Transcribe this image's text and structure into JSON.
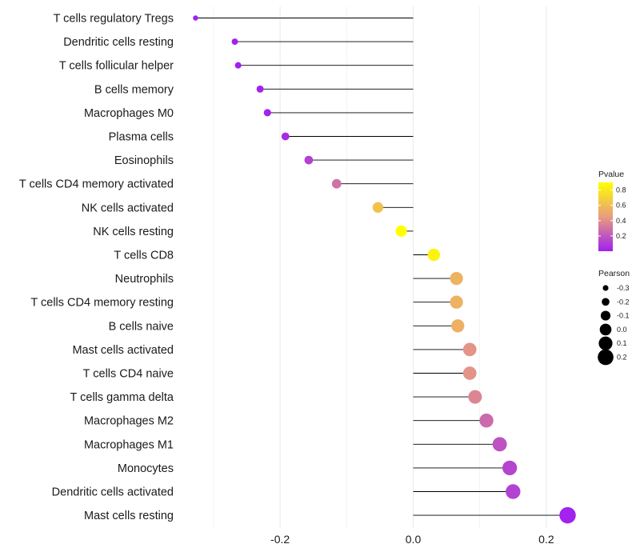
{
  "chart_data": {
    "type": "lollipop",
    "title": "",
    "xlabel": "",
    "ylabel": "",
    "xlim": [
      -0.33,
      0.23
    ],
    "grid": true,
    "x_ticks": [
      -0.2,
      0.0,
      0.2
    ],
    "x_tick_labels": [
      "-0.2",
      "0.0",
      "0.2"
    ],
    "categories": [
      "T cells regulatory  Tregs",
      "Dendritic cells resting",
      "T cells follicular helper",
      "B cells memory",
      "Macrophages M0",
      "Plasma cells",
      "Eosinophils",
      "T cells CD4 memory activated",
      "NK cells activated",
      "NK cells resting",
      "T cells CD8",
      "Neutrophils",
      "T cells CD4 memory resting",
      "B cells naive",
      "Mast cells activated",
      "T cells CD4 naive",
      "T cells gamma delta",
      "Macrophages M2",
      "Macrophages M1",
      "Monocytes",
      "Dendritic cells activated",
      "Mast cells resting"
    ],
    "series": [
      {
        "name": "Pearson",
        "values": [
          -0.327,
          -0.268,
          -0.263,
          -0.23,
          -0.219,
          -0.192,
          -0.157,
          -0.115,
          -0.053,
          -0.018,
          0.031,
          0.065,
          0.065,
          0.067,
          0.085,
          0.085,
          0.093,
          0.11,
          0.13,
          0.145,
          0.15,
          0.232
        ]
      },
      {
        "name": "Pvalue",
        "values": [
          0.001,
          0.002,
          0.003,
          0.01,
          0.015,
          0.04,
          0.12,
          0.3,
          0.62,
          0.92,
          0.85,
          0.55,
          0.55,
          0.54,
          0.42,
          0.42,
          0.37,
          0.27,
          0.18,
          0.13,
          0.12,
          0.01
        ]
      }
    ],
    "legend": {
      "placement": "right",
      "color": {
        "title": "Pvalue",
        "range": [
          0.0,
          0.9
        ],
        "ticks": [
          0.8,
          0.6,
          0.4,
          0.2
        ],
        "tick_labels": [
          "0.8",
          "0.6",
          "0.4",
          "0.2"
        ],
        "low_color": "#a020f0",
        "mid_color": "#e89c7e",
        "high_color": "#ffff00"
      },
      "size": {
        "title": "Pearson",
        "values": [
          -0.3,
          -0.2,
          -0.1,
          0.0,
          0.1,
          0.2
        ],
        "labels": [
          "-0.3",
          "-0.2",
          "-0.1",
          "0.0",
          "0.1",
          "0.2"
        ],
        "color": "#000000"
      }
    },
    "stem_color": "#000000",
    "grid_color": "#ebebeb"
  }
}
